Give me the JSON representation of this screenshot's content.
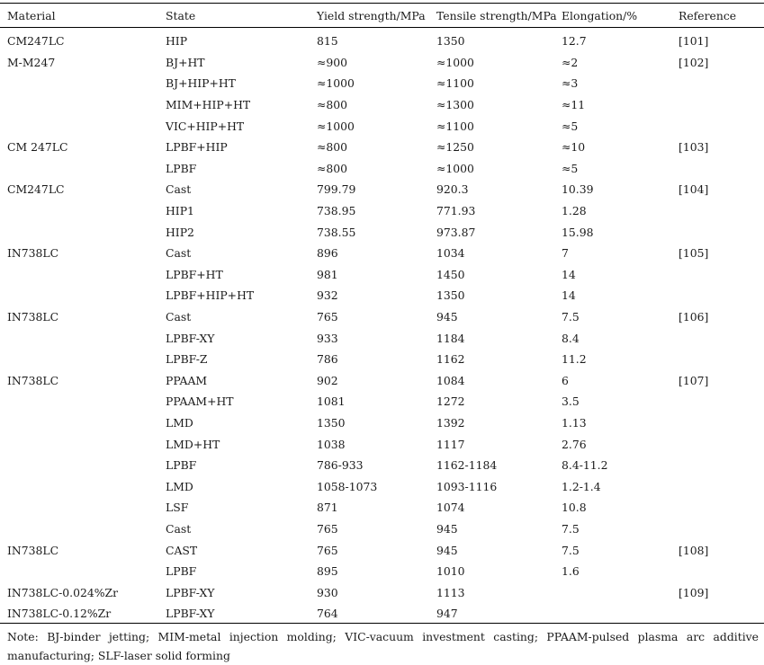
{
  "headers": [
    "Material",
    "State",
    "Yield strength/MPa",
    "Tensile strength/MPa",
    "Elongation/%",
    "Reference"
  ],
  "rows": [
    [
      "CM247LC",
      "HIP",
      " 815",
      "1350",
      "12.7",
      "[101]"
    ],
    [
      "M-M247",
      "BJ+HT",
      "≈900",
      "≈1000",
      "≈2",
      "[102]"
    ],
    [
      "",
      "BJ+HIP+HT",
      "≈1000",
      "≈1100",
      "≈3",
      ""
    ],
    [
      "",
      "MIM+HIP+HT",
      "≈800",
      "≈1300",
      "≈11",
      ""
    ],
    [
      "",
      "VIC+HIP+HT",
      "≈1000",
      "≈1100",
      "≈5",
      ""
    ],
    [
      "CM 247LC",
      "LPBF+HIP",
      "≈800",
      "≈1250",
      "≈10",
      "[103]"
    ],
    [
      "",
      "LPBF",
      "≈800",
      "≈1000",
      "≈5",
      ""
    ],
    [
      "CM247LC",
      "Cast",
      "799.79",
      "920.3",
      "10.39",
      "[104]"
    ],
    [
      "",
      "HIP1",
      "738.95",
      " 771.93",
      " 1.28",
      ""
    ],
    [
      "",
      "HIP2",
      "738.55",
      " 973.87",
      "15.98",
      ""
    ],
    [
      "IN738LC",
      "Cast",
      "896",
      "1034",
      "7",
      "[105]"
    ],
    [
      "",
      "LPBF+HT",
      "981",
      "1450",
      "14",
      ""
    ],
    [
      "",
      "LPBF+HIP+HT",
      "932",
      "1350",
      "14",
      ""
    ],
    [
      "IN738LC",
      "Cast",
      "765",
      " 945",
      "7.5",
      "[106]"
    ],
    [
      "",
      "LPBF-XY",
      "933",
      "1184",
      "8.4",
      ""
    ],
    [
      "",
      "LPBF-Z",
      "786",
      "1162",
      "11.2",
      ""
    ],
    [
      "IN738LC",
      "PPAAM",
      "902",
      "1084",
      "6",
      "[107]"
    ],
    [
      "",
      "PPAAM+HT",
      "1081",
      "1272",
      "3.5",
      ""
    ],
    [
      "",
      "LMD",
      "1350",
      "1392",
      "1.13",
      ""
    ],
    [
      "",
      "LMD+HT",
      "1038",
      "1117",
      "2.76",
      ""
    ],
    [
      "",
      "LPBF",
      "786-933",
      "1162-1184",
      "8.4-11.2",
      ""
    ],
    [
      "",
      "LMD",
      "1058-1073",
      "1093-1116",
      "1.2-1.4",
      ""
    ],
    [
      "",
      "LSF",
      "871",
      "1074",
      "10.8",
      ""
    ],
    [
      "",
      "Cast",
      "765",
      " 945",
      "7.5",
      ""
    ],
    [
      "IN738LC",
      "CAST",
      "765",
      " 945",
      "7.5",
      "[108]"
    ],
    [
      "",
      "LPBF",
      "895",
      "1010",
      "1.6",
      ""
    ],
    [
      "IN738LC-0.024%Zr",
      "LPBF-XY",
      "930",
      "1113",
      "",
      "[109]"
    ],
    [
      "IN738LC-0.12%Zr",
      "LPBF-XY",
      "764",
      " 947",
      "",
      ""
    ]
  ],
  "note": "Note: BJ-binder jetting; MIM-metal injection molding; VIC-vacuum investment casting; PPAAM-pulsed plasma arc additive manufacturing; SLF-laser solid forming"
}
